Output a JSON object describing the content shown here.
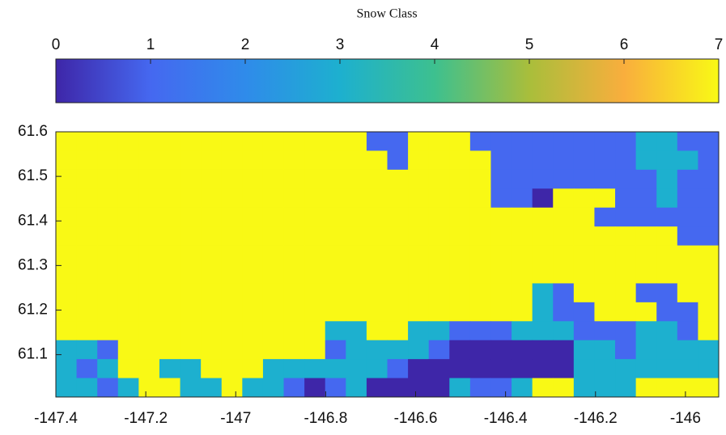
{
  "chart_data": {
    "type": "heatmap",
    "colorbar_title": "Snow Class",
    "clim": [
      0,
      7
    ],
    "cticks": [
      0,
      1,
      2,
      3,
      4,
      5,
      6,
      7
    ],
    "colormap": [
      "#3e26a8",
      "#4568f0",
      "#2f8bea",
      "#1db0cf",
      "#3dc08f",
      "#a9be3b",
      "#f9ae3d",
      "#f9f915"
    ],
    "xlim": [
      -147.4,
      -145.926
    ],
    "xticks": [
      -147.4,
      -147.2,
      -147,
      -146.8,
      -146.6,
      -146.4,
      -146.2,
      -146
    ],
    "ylim": [
      61.005,
      61.6
    ],
    "yticks": [
      61.1,
      61.2,
      61.3,
      61.4,
      61.5,
      61.6
    ],
    "z": [
      [
        7,
        7,
        7,
        7,
        7,
        7,
        7,
        7,
        7,
        7,
        7,
        7,
        7,
        7,
        7,
        1,
        1,
        7,
        7,
        7,
        1,
        1,
        1,
        1,
        1,
        1,
        1,
        1,
        3,
        3,
        1,
        1
      ],
      [
        7,
        7,
        7,
        7,
        7,
        7,
        7,
        7,
        7,
        7,
        7,
        7,
        7,
        7,
        7,
        7,
        1,
        7,
        7,
        7,
        7,
        1,
        1,
        1,
        1,
        1,
        1,
        1,
        3,
        3,
        3,
        1
      ],
      [
        7,
        7,
        7,
        7,
        7,
        7,
        7,
        7,
        7,
        7,
        7,
        7,
        7,
        7,
        7,
        7,
        7,
        7,
        7,
        7,
        7,
        1,
        1,
        1,
        1,
        1,
        1,
        1,
        1,
        3,
        1,
        1
      ],
      [
        7,
        7,
        7,
        7,
        7,
        7,
        7,
        7,
        7,
        7,
        7,
        7,
        7,
        7,
        7,
        7,
        7,
        7,
        7,
        7,
        7,
        1,
        1,
        0,
        7,
        7,
        7,
        1,
        1,
        3,
        1,
        1
      ],
      [
        7,
        7,
        7,
        7,
        7,
        7,
        7,
        7,
        7,
        7,
        7,
        7,
        7,
        7,
        7,
        7,
        7,
        7,
        7,
        7,
        7,
        7,
        7,
        7,
        7,
        7,
        1,
        1,
        1,
        1,
        1,
        1
      ],
      [
        7,
        7,
        7,
        7,
        7,
        7,
        7,
        7,
        7,
        7,
        7,
        7,
        7,
        7,
        7,
        7,
        7,
        7,
        7,
        7,
        7,
        7,
        7,
        7,
        7,
        7,
        7,
        7,
        7,
        7,
        1,
        1
      ],
      [
        7,
        7,
        7,
        7,
        7,
        7,
        7,
        7,
        7,
        7,
        7,
        7,
        7,
        7,
        7,
        7,
        7,
        7,
        7,
        7,
        7,
        7,
        7,
        7,
        7,
        7,
        7,
        7,
        7,
        7,
        7,
        7
      ],
      [
        7,
        7,
        7,
        7,
        7,
        7,
        7,
        7,
        7,
        7,
        7,
        7,
        7,
        7,
        7,
        7,
        7,
        7,
        7,
        7,
        7,
        7,
        7,
        7,
        7,
        7,
        7,
        7,
        7,
        7,
        7,
        7
      ],
      [
        7,
        7,
        7,
        7,
        7,
        7,
        7,
        7,
        7,
        7,
        7,
        7,
        7,
        7,
        7,
        7,
        7,
        7,
        7,
        7,
        7,
        7,
        7,
        3,
        1,
        7,
        7,
        7,
        1,
        1,
        7,
        7
      ],
      [
        7,
        7,
        7,
        7,
        7,
        7,
        7,
        7,
        7,
        7,
        7,
        7,
        7,
        7,
        7,
        7,
        7,
        7,
        7,
        7,
        7,
        7,
        7,
        3,
        1,
        1,
        7,
        7,
        7,
        1,
        1,
        7
      ],
      [
        7,
        7,
        7,
        7,
        7,
        7,
        7,
        7,
        7,
        7,
        7,
        7,
        7,
        3,
        3,
        7,
        7,
        3,
        3,
        1,
        1,
        1,
        3,
        3,
        3,
        1,
        1,
        1,
        3,
        3,
        1,
        7
      ],
      [
        3,
        3,
        1,
        7,
        7,
        7,
        7,
        7,
        7,
        7,
        7,
        7,
        7,
        1,
        3,
        3,
        3,
        3,
        1,
        0,
        0,
        0,
        0,
        0,
        0,
        3,
        3,
        1,
        3,
        3,
        3,
        3
      ],
      [
        3,
        1,
        3,
        7,
        7,
        3,
        3,
        7,
        7,
        7,
        3,
        3,
        3,
        3,
        3,
        3,
        1,
        0,
        0,
        0,
        0,
        0,
        0,
        0,
        0,
        3,
        3,
        3,
        3,
        3,
        3,
        3
      ],
      [
        3,
        3,
        1,
        3,
        7,
        7,
        3,
        3,
        7,
        3,
        3,
        1,
        0,
        1,
        3,
        0,
        0,
        0,
        0,
        3,
        1,
        1,
        3,
        7,
        7,
        3,
        3,
        3,
        7,
        7,
        7,
        7
      ]
    ]
  }
}
